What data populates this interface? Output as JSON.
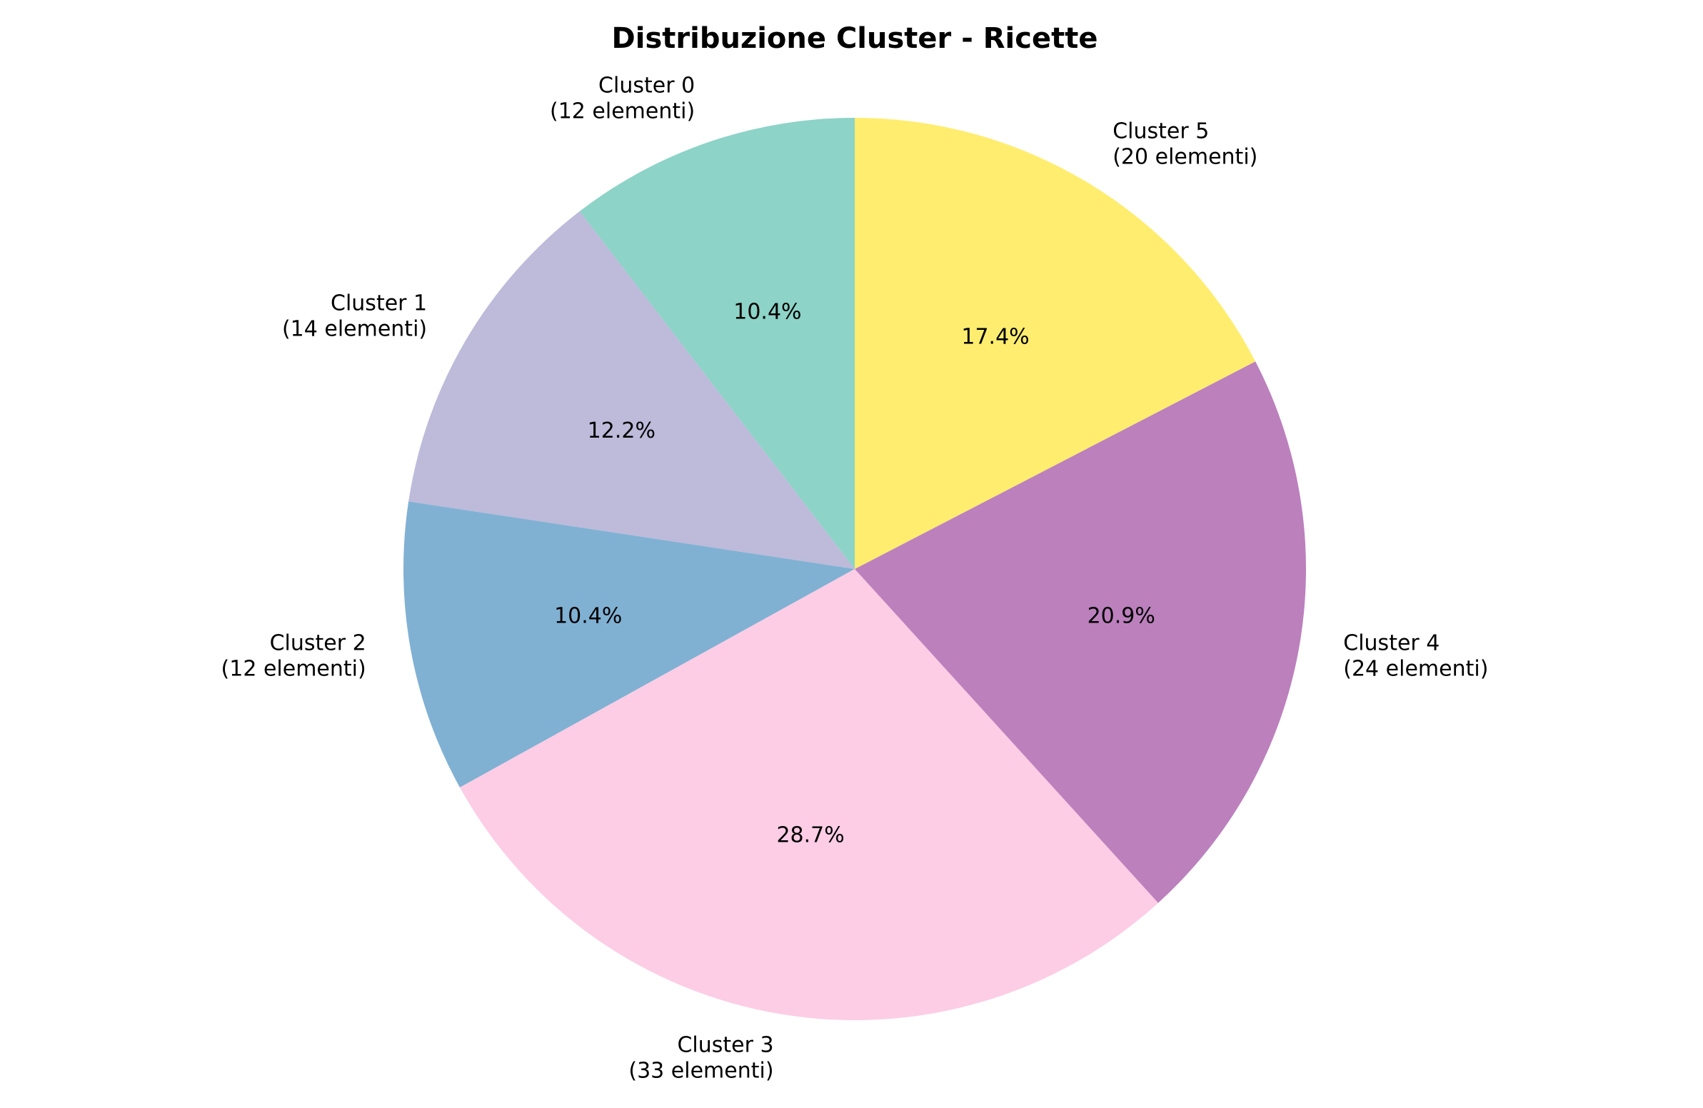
{
  "chart_data": {
    "type": "pie",
    "title": "Distribuzione Cluster - Ricette",
    "start_angle_deg": 90,
    "direction": "counterclockwise",
    "slices": [
      {
        "name": "Cluster 0",
        "label": "Cluster 0\n(12 elementi)",
        "value": 12,
        "pct_label": "10.4%",
        "color": "#8dd3c7"
      },
      {
        "name": "Cluster 1",
        "label": "Cluster 1\n(14 elementi)",
        "value": 14,
        "pct_label": "12.2%",
        "color": "#bebada"
      },
      {
        "name": "Cluster 2",
        "label": "Cluster 2\n(12 elementi)",
        "value": 12,
        "pct_label": "10.4%",
        "color": "#80b1d3"
      },
      {
        "name": "Cluster 3",
        "label": "Cluster 3\n(33 elementi)",
        "value": 33,
        "pct_label": "28.7%",
        "color": "#fccde5"
      },
      {
        "name": "Cluster 4",
        "label": "Cluster 4\n(24 elementi)",
        "value": 24,
        "pct_label": "20.9%",
        "color": "#bc80bd"
      },
      {
        "name": "Cluster 5",
        "label": "Cluster 5\n(20 elementi)",
        "value": 20,
        "pct_label": "17.4%",
        "color": "#ffed6f"
      }
    ]
  }
}
